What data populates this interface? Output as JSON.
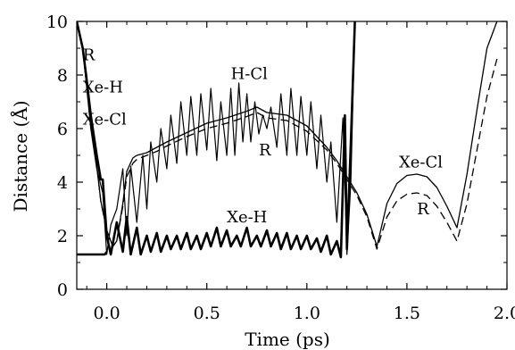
{
  "chart_data": {
    "type": "line",
    "title": "",
    "xlabel": "Time (ps)",
    "ylabel": "Distance (Å)",
    "xlim": [
      -0.15,
      2.0
    ],
    "ylim": [
      0,
      10
    ],
    "xticks": [
      0.0,
      0.5,
      1.0,
      1.5,
      2.0
    ],
    "xtick_labels": [
      "0.0",
      "0.5",
      "1.0",
      "1.5",
      "2.0"
    ],
    "yticks": [
      0,
      2,
      4,
      6,
      8,
      10
    ],
    "ytick_labels": [
      "0",
      "2",
      "4",
      "6",
      "8",
      "10"
    ],
    "grid": false,
    "legend": "none",
    "annotations": [
      {
        "text": "R",
        "x": -0.12,
        "y": 8.55
      },
      {
        "text": "Xe-H",
        "x": -0.12,
        "y": 7.35
      },
      {
        "text": "Xe-Cl",
        "x": -0.12,
        "y": 6.15
      },
      {
        "text": "H-Cl",
        "x": 0.62,
        "y": 7.85
      },
      {
        "text": "R",
        "x": 0.76,
        "y": 5.0
      },
      {
        "text": "Xe-H",
        "x": 0.6,
        "y": 2.5
      },
      {
        "text": "Xe-Cl",
        "x": 1.46,
        "y": 4.55
      },
      {
        "text": "R",
        "x": 1.55,
        "y": 2.8
      }
    ],
    "series": [
      {
        "name": "Xe-Cl",
        "style": "solid-thin",
        "x": [
          -0.15,
          -0.12,
          -0.1,
          -0.08,
          -0.05,
          -0.03,
          0.0,
          0.03,
          0.05,
          0.08,
          0.1,
          0.13,
          0.15,
          0.2,
          0.25,
          0.3,
          0.4,
          0.5,
          0.6,
          0.7,
          0.75,
          0.8,
          0.9,
          1.0,
          1.05,
          1.1,
          1.15,
          1.2,
          1.25,
          1.3,
          1.35,
          1.4,
          1.45,
          1.5,
          1.55,
          1.6,
          1.65,
          1.7,
          1.75,
          1.8,
          1.85,
          1.9,
          1.95
        ],
        "y": [
          10.0,
          9.0,
          7.6,
          6.2,
          4.6,
          3.3,
          2.2,
          1.6,
          1.8,
          3.2,
          4.4,
          4.9,
          5.0,
          5.1,
          5.3,
          5.5,
          5.85,
          6.2,
          6.4,
          6.65,
          6.8,
          6.6,
          6.5,
          6.1,
          5.7,
          5.3,
          4.8,
          4.2,
          3.6,
          2.8,
          1.6,
          3.2,
          3.95,
          4.25,
          4.3,
          4.2,
          3.8,
          3.1,
          2.3,
          4.3,
          6.7,
          9.0,
          10.0
        ]
      },
      {
        "name": "R",
        "style": "dashed",
        "x": [
          -0.15,
          -0.12,
          -0.1,
          -0.08,
          -0.05,
          -0.03,
          0.0,
          0.03,
          0.05,
          0.08,
          0.1,
          0.13,
          0.15,
          0.2,
          0.25,
          0.3,
          0.4,
          0.5,
          0.6,
          0.7,
          0.75,
          0.8,
          0.9,
          1.0,
          1.05,
          1.1,
          1.15,
          1.2,
          1.25,
          1.3,
          1.35,
          1.4,
          1.45,
          1.5,
          1.55,
          1.6,
          1.65,
          1.7,
          1.75,
          1.8,
          1.85,
          1.9,
          1.95
        ],
        "y": [
          10.0,
          9.0,
          7.6,
          6.2,
          4.6,
          3.3,
          2.2,
          1.6,
          1.8,
          3.1,
          4.2,
          4.7,
          4.85,
          5.0,
          5.15,
          5.35,
          5.7,
          6.0,
          6.2,
          6.45,
          6.6,
          6.4,
          6.3,
          5.9,
          5.55,
          5.2,
          4.7,
          4.1,
          3.5,
          2.7,
          1.5,
          2.7,
          3.3,
          3.55,
          3.6,
          3.5,
          3.1,
          2.5,
          1.8,
          3.2,
          5.2,
          7.2,
          8.6
        ]
      },
      {
        "name": "H-Cl",
        "style": "solid-thin-oscillating",
        "x": [
          -0.15,
          -0.12,
          -0.1,
          -0.08,
          -0.05,
          -0.02,
          0.0,
          0.02,
          0.05,
          0.08,
          0.1,
          0.12,
          0.15,
          0.18,
          0.2,
          0.22,
          0.25,
          0.27,
          0.3,
          0.32,
          0.35,
          0.37,
          0.4,
          0.42,
          0.45,
          0.47,
          0.5,
          0.52,
          0.55,
          0.57,
          0.6,
          0.62,
          0.64,
          0.66,
          0.68,
          0.7,
          0.72,
          0.74,
          0.76,
          0.78,
          0.8,
          0.82,
          0.85,
          0.87,
          0.9,
          0.92,
          0.95,
          0.97,
          1.0,
          1.02,
          1.05,
          1.07,
          1.1,
          1.12,
          1.15,
          1.18,
          1.2,
          1.22,
          1.24
        ],
        "y": [
          10.0,
          9.0,
          7.5,
          6.0,
          4.5,
          3.6,
          1.3,
          2.4,
          3.0,
          4.5,
          2.0,
          4.6,
          2.5,
          5.0,
          3.0,
          5.5,
          4.0,
          6.0,
          4.5,
          6.5,
          4.7,
          7.0,
          5.0,
          7.2,
          5.0,
          7.3,
          5.2,
          7.5,
          4.8,
          7.0,
          5.0,
          7.5,
          5.0,
          7.7,
          5.5,
          7.3,
          5.5,
          7.0,
          5.8,
          6.5,
          6.0,
          6.8,
          5.3,
          7.3,
          5.0,
          7.5,
          5.0,
          7.2,
          5.0,
          7.0,
          4.5,
          6.5,
          4.0,
          5.5,
          2.5,
          6.4,
          1.3,
          4.0,
          10.0
        ]
      },
      {
        "name": "Xe-H",
        "style": "solid-thick",
        "x": [
          -0.15,
          -0.12,
          -0.1,
          -0.08,
          -0.05,
          -0.03,
          -0.02,
          0.0,
          0.02,
          0.05,
          0.08,
          0.1,
          0.12,
          0.15,
          0.17,
          0.2,
          0.22,
          0.25,
          0.27,
          0.3,
          0.32,
          0.35,
          0.37,
          0.4,
          0.42,
          0.45,
          0.47,
          0.5,
          0.52,
          0.55,
          0.57,
          0.6,
          0.62,
          0.65,
          0.67,
          0.7,
          0.72,
          0.75,
          0.77,
          0.8,
          0.82,
          0.85,
          0.87,
          0.9,
          0.92,
          0.95,
          0.97,
          1.0,
          1.02,
          1.05,
          1.07,
          1.1,
          1.12,
          1.15,
          1.17,
          1.19,
          1.2,
          1.22,
          1.24
        ],
        "y": [
          10.0,
          9.0,
          7.8,
          6.5,
          5.0,
          4.1,
          4.1,
          2.0,
          1.3,
          2.5,
          1.4,
          2.7,
          1.3,
          2.3,
          1.3,
          2.0,
          1.4,
          2.1,
          1.4,
          2.0,
          1.5,
          2.0,
          1.5,
          2.1,
          1.5,
          2.0,
          1.5,
          2.1,
          1.6,
          2.3,
          1.6,
          2.2,
          1.6,
          2.0,
          1.6,
          2.3,
          1.6,
          2.0,
          1.6,
          2.2,
          1.6,
          2.1,
          1.5,
          2.1,
          1.5,
          2.0,
          1.5,
          2.0,
          1.5,
          1.9,
          1.4,
          2.0,
          1.3,
          1.8,
          1.2,
          6.5,
          1.5,
          5.5,
          10.0
        ]
      },
      {
        "name": "HCl-initial",
        "style": "solid-thick",
        "x": [
          -0.15,
          -0.1,
          -0.05,
          -0.01,
          0.0
        ],
        "y": [
          1.3,
          1.3,
          1.3,
          1.3,
          1.4
        ]
      }
    ]
  }
}
